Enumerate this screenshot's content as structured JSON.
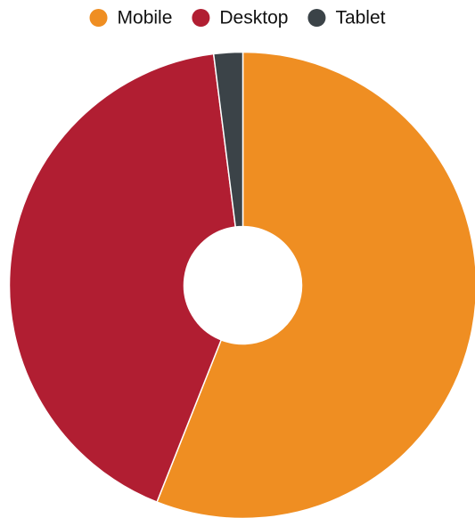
{
  "chart_data": {
    "type": "pie",
    "variant": "donut",
    "categories": [
      "Mobile",
      "Desktop",
      "Tablet"
    ],
    "values": [
      56.0,
      42.0,
      2.0
    ],
    "colors": [
      "#EF8E22",
      "#B11E32",
      "#3B4348"
    ],
    "legend": {
      "position": "top",
      "entries": [
        "Mobile",
        "Desktop",
        "Tablet"
      ]
    },
    "title": ""
  }
}
